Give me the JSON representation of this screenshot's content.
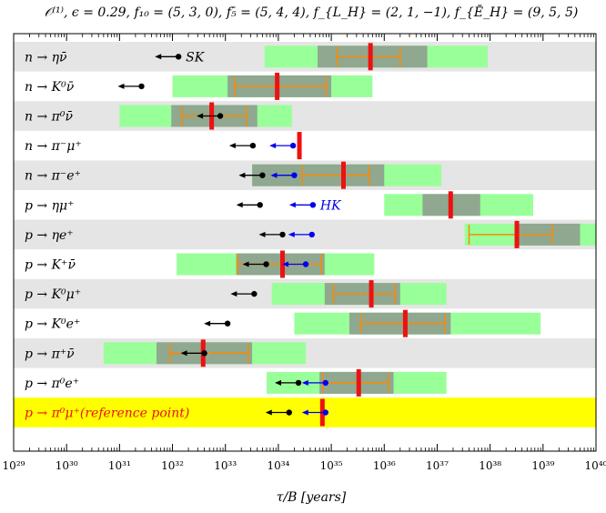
{
  "chart_data": {
    "type": "range-bar",
    "title": "𝒪⁽¹⁾, ϵ = 0.29, f₁₀ = (5, 3, 0), f₅̄ = (5, 4, 4), f_{L_H} = (2, 1, −1), f_{Ē_H} = (9, 5, 5)",
    "xlabel": "τ/B [years]",
    "x_scale": "log",
    "xlim": [
      1e+29,
      1e+40
    ],
    "x_ticks": [
      {
        "value": 1e+29,
        "label": "10²⁹"
      },
      {
        "value": 1e+30,
        "label": "10³⁰"
      },
      {
        "value": 1e+31,
        "label": "10³¹"
      },
      {
        "value": 1e+32,
        "label": "10³²"
      },
      {
        "value": 1e+33,
        "label": "10³³"
      },
      {
        "value": 1e+34,
        "label": "10³⁴"
      },
      {
        "value": 1e+35,
        "label": "10³⁵"
      },
      {
        "value": 1e+36,
        "label": "10³⁶"
      },
      {
        "value": 1e+37,
        "label": "10³⁷"
      },
      {
        "value": 1e+38,
        "label": "10³⁸"
      },
      {
        "value": 1e+39,
        "label": "10³⁹"
      },
      {
        "value": 1e+40,
        "label": "10⁴⁰"
      }
    ],
    "colors": {
      "outer_range": "#99ff99",
      "inner_range": "#8fa88f",
      "central": "#ee1111",
      "quartile": "#ff8800",
      "sk_bound": "#000000",
      "hk_bound": "#0000ee",
      "row_shade": "#e5e5e5",
      "reference_row": "#ffff00",
      "reference_label": "#ee1111"
    },
    "annotations": [
      {
        "text": "SK",
        "row": 0,
        "color": "#000000"
      },
      {
        "text": "HK",
        "row": 5,
        "color": "#0000ee"
      }
    ],
    "rows": [
      {
        "label": "n → ην̄",
        "outer": [
          5.5e+33,
          9e+37
        ],
        "inner": [
          5.5e+34,
          6.5e+36
        ],
        "central": 5.5e+35,
        "quartiles": [
          1.3e+35,
          2e+36
        ],
        "sk": 1.3e+32,
        "hk": null
      },
      {
        "label": "n → K⁰ν̄",
        "outer": [
          1e+32,
          6e+35
        ],
        "inner": [
          1.1e+33,
          1e+35
        ],
        "central": 9.5e+33,
        "quartiles": [
          1.5e+33,
          8e+34
        ],
        "sk": 2.6e+31,
        "hk": null
      },
      {
        "label": "n → π⁰ν̄",
        "outer": [
          1e+31,
          1.8e+34
        ],
        "inner": [
          9.5e+31,
          4e+33
        ],
        "central": 5.5e+32,
        "quartiles": [
          1.5e+32,
          2.5e+33
        ],
        "sk": 8e+32,
        "hk": null
      },
      {
        "label": "n → π⁻μ⁺",
        "outer": null,
        "inner": null,
        "central": 2.5e+34,
        "quartiles": null,
        "sk": 3.3e+33,
        "hk": 1.9e+34
      },
      {
        "label": "n → π⁻e⁺",
        "outer": [
          3.2e+33,
          1.2e+37
        ],
        "inner": [
          3.2e+33,
          1e+36
        ],
        "central": 1.7e+35,
        "quartiles": [
          2.8e+34,
          5.2e+35
        ],
        "sk": 5e+33,
        "hk": 2e+34
      },
      {
        "label": "p → ημ⁺",
        "outer": [
          1e+36,
          6.5e+38
        ],
        "inner": [
          5.3e+36,
          6.5e+37
        ],
        "central": 1.8e+37,
        "quartiles": null,
        "sk": 4.5e+33,
        "hk": 4.5e+34
      },
      {
        "label": "p → ηe⁺",
        "outer": [
          3.3e+37,
          1e+40
        ],
        "inner": [
          3.3e+38,
          5e+39
        ],
        "central": 3.2e+38,
        "quartiles": [
          4e+37,
          1.5e+39
        ],
        "sk": 1.2e+34,
        "hk": 4.3e+34
      },
      {
        "label": "p → K⁺ν̄",
        "outer": [
          1.2e+32,
          6.5e+35
        ],
        "inner": [
          1.6e+33,
          7.5e+34
        ],
        "central": 1.2e+34,
        "quartiles": [
          1.7e+33,
          6.5e+34
        ],
        "sk": 5.9e+33,
        "hk": 3.3e+34
      },
      {
        "label": "p → K⁰μ⁺",
        "outer": [
          7.5e+33,
          1.5e+37
        ],
        "inner": [
          7.5e+34,
          2e+36
        ],
        "central": 5.7e+35,
        "quartiles": [
          1.1e+35,
          1.6e+36
        ],
        "sk": 3.5e+33,
        "hk": null
      },
      {
        "label": "p → K⁰e⁺",
        "outer": [
          2e+34,
          9e+38
        ],
        "inner": [
          2.2e+35,
          1.8e+37
        ],
        "central": 2.5e+36,
        "quartiles": [
          3.6e+35,
          1.4e+37
        ],
        "sk": 1.1e+33,
        "hk": null
      },
      {
        "label": "p → π⁺ν̄",
        "outer": [
          5e+30,
          3.3e+34
        ],
        "inner": [
          5e+31,
          3.2e+33
        ],
        "central": 3.8e+32,
        "quartiles": [
          9e+31,
          2.7e+33
        ],
        "sk": 4e+32,
        "hk": null
      },
      {
        "label": "p → π⁰e⁺",
        "outer": [
          6e+33,
          1.5e+37
        ],
        "inner": [
          6e+34,
          1.5e+36
        ],
        "central": 3.3e+35,
        "quartiles": [
          7e+34,
          1.2e+36
        ],
        "sk": 2.4e+34,
        "hk": 7.8e+34
      },
      {
        "label": "p → π⁰μ⁺(reference point)",
        "outer": null,
        "inner": null,
        "central": 6.8e+34,
        "quartiles": null,
        "sk": 1.6e+34,
        "hk": 7.8e+34,
        "reference": true
      }
    ]
  }
}
